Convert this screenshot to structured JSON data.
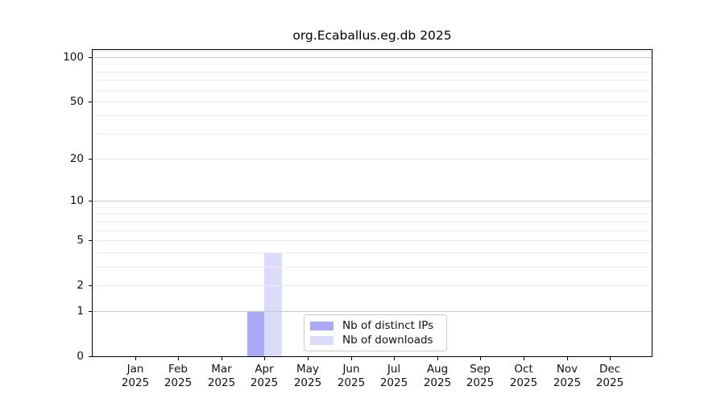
{
  "chart_data": {
    "type": "bar",
    "title": "org.Ecaballus.eg.db 2025",
    "x_axis": {
      "categories": [
        "Jan",
        "Feb",
        "Mar",
        "Apr",
        "May",
        "Jun",
        "Jul",
        "Aug",
        "Sep",
        "Oct",
        "Nov",
        "Dec"
      ],
      "year": "2025"
    },
    "y_axis": {
      "scale": "log1p",
      "tick_values": [
        0,
        1,
        2,
        5,
        10,
        20,
        50,
        100
      ],
      "top_value": 112
    },
    "gridlines": {
      "major": [
        1,
        10,
        100
      ],
      "minor": [
        2,
        3,
        4,
        5,
        6,
        7,
        8,
        9,
        20,
        30,
        40,
        50,
        60,
        70,
        80,
        90,
        110
      ]
    },
    "series": [
      {
        "name": "Nb of distinct IPs",
        "color": "#a9a9f5",
        "values": [
          0,
          0,
          0,
          1,
          0,
          0,
          0,
          0,
          0,
          0,
          0,
          0
        ]
      },
      {
        "name": "Nb of downloads",
        "color": "#dbdbfc",
        "values": [
          0,
          0,
          0,
          4,
          0,
          0,
          0,
          0,
          0,
          0,
          0,
          0
        ]
      }
    ],
    "legend": {
      "position": "bottom-center"
    },
    "colors": {
      "major_grid": "#c9c9c9",
      "minor_grid": "#ededed",
      "axis": "#000000",
      "background": "#ffffff"
    }
  }
}
